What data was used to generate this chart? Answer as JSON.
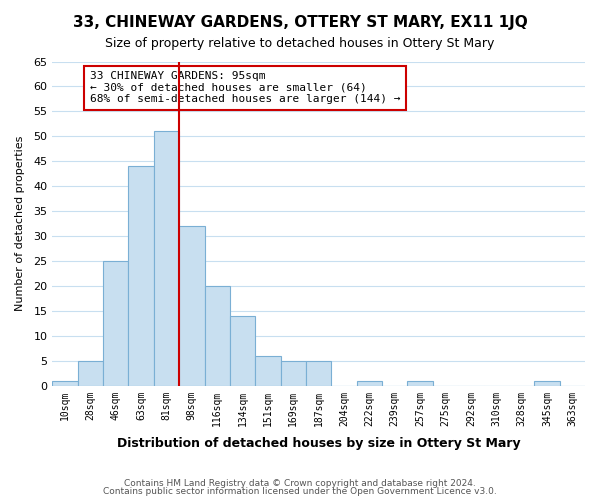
{
  "title": "33, CHINEWAY GARDENS, OTTERY ST MARY, EX11 1JQ",
  "subtitle": "Size of property relative to detached houses in Ottery St Mary",
  "xlabel": "Distribution of detached houses by size in Ottery St Mary",
  "ylabel": "Number of detached properties",
  "bin_labels": [
    "10sqm",
    "28sqm",
    "46sqm",
    "63sqm",
    "81sqm",
    "98sqm",
    "116sqm",
    "134sqm",
    "151sqm",
    "169sqm",
    "187sqm",
    "204sqm",
    "222sqm",
    "239sqm",
    "257sqm",
    "275sqm",
    "292sqm",
    "310sqm",
    "328sqm",
    "345sqm",
    "363sqm"
  ],
  "bar_heights": [
    1,
    5,
    25,
    44,
    51,
    32,
    20,
    14,
    6,
    5,
    5,
    0,
    1,
    0,
    1,
    0,
    0,
    0,
    0,
    1,
    0
  ],
  "bar_color": "#c8dff0",
  "bar_edge_color": "#7aafd4",
  "vline_x": 5.0,
  "vline_color": "#cc0000",
  "annotation_title": "33 CHINEWAY GARDENS: 95sqm",
  "annotation_line1": "← 30% of detached houses are smaller (64)",
  "annotation_line2": "68% of semi-detached houses are larger (144) →",
  "annotation_box_color": "#ffffff",
  "annotation_box_edge": "#cc0000",
  "ylim": [
    0,
    65
  ],
  "yticks": [
    0,
    5,
    10,
    15,
    20,
    25,
    30,
    35,
    40,
    45,
    50,
    55,
    60,
    65
  ],
  "footer1": "Contains HM Land Registry data © Crown copyright and database right 2024.",
  "footer2": "Contains public sector information licensed under the Open Government Licence v3.0.",
  "background_color": "#ffffff",
  "grid_color": "#c8dff0"
}
